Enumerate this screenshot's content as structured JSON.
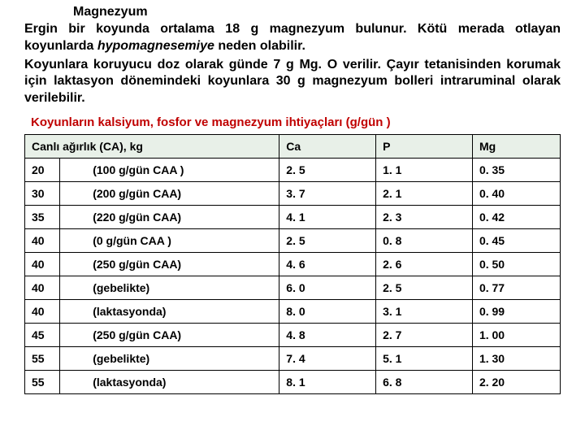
{
  "title": "Magnezyum",
  "para1_a": "Ergin bir koyunda ortalama 18 g magnezyum bulunur. Kötü merada otlayan koyunlarda ",
  "para1_italic": "hypomagnesemiye",
  "para1_b": " neden olabilir.",
  "para2": "Koyunlara koruyucu doz olarak günde 7 g Mg. O verilir. Çayır tetanisinden korumak için laktasyon dönemindeki koyunlara 30 g magnezyum bolleri intraruminal olarak verilebilir.",
  "subtitle": "Koyunların kalsiyum, fosfor ve magnezyum ihtiyaçları (g/gün )",
  "table": {
    "headers": {
      "weight": "Canlı ağırlık (CA), kg",
      "ca": "Ca",
      "p": "P",
      "mg": "Mg"
    },
    "rows": [
      {
        "w": "20",
        "note": "(100 g/gün CAA )",
        "ca": "2. 5",
        "p": "1. 1",
        "mg": "0. 35"
      },
      {
        "w": "30",
        "note": "(200 g/gün CAA)",
        "ca": "3. 7",
        "p": "2. 1",
        "mg": "0. 40"
      },
      {
        "w": "35",
        "note": "(220 g/gün CAA)",
        "ca": "4. 1",
        "p": "2. 3",
        "mg": "0. 42"
      },
      {
        "w": "40",
        "note": "(0 g/gün CAA )",
        "ca": "2. 5",
        "p": "0. 8",
        "mg": "0. 45"
      },
      {
        "w": "40",
        "note": "(250 g/gün CAA)",
        "ca": "4. 6",
        "p": "2. 6",
        "mg": "0. 50"
      },
      {
        "w": "40",
        "note": "(gebelikte)",
        "ca": "6. 0",
        "p": "2. 5",
        "mg": "0. 77"
      },
      {
        "w": "40",
        "note": "(laktasyonda)",
        "ca": "8. 0",
        "p": "3. 1",
        "mg": "0. 99"
      },
      {
        "w": "45",
        "note": "(250 g/gün CAA)",
        "ca": "4. 8",
        "p": "2. 7",
        "mg": "1. 00"
      },
      {
        "w": "55",
        "note": "(gebelikte)",
        "ca": "7. 4",
        "p": "5. 1",
        "mg": "1. 30"
      },
      {
        "w": "55",
        "note": "(laktasyonda)",
        "ca": "8. 1",
        "p": "6. 8",
        "mg": "2. 20"
      }
    ]
  }
}
